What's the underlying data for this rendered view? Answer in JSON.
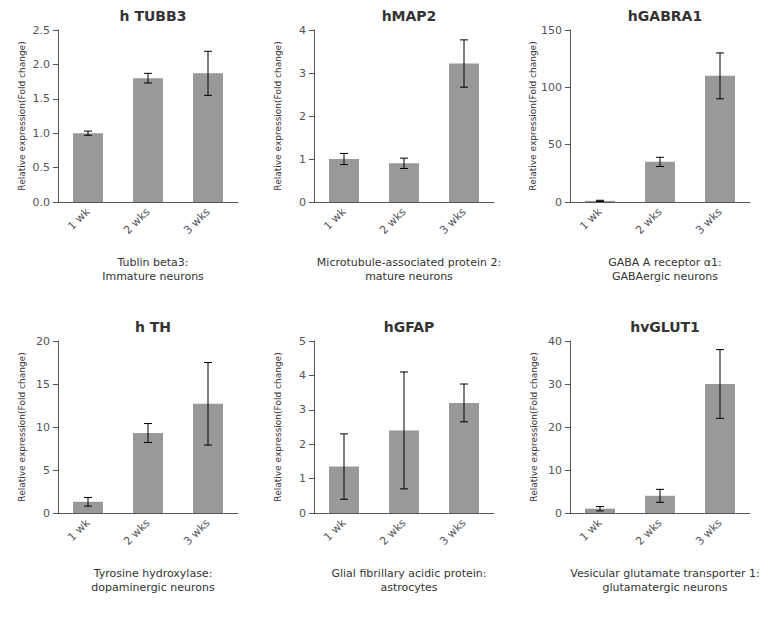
{
  "chart_data": [
    {
      "type": "bar",
      "title": "h TUBB3",
      "subtitle": "Tublin beta3:\nImmature neurons",
      "categories": [
        "1 wk",
        "2 wks",
        "3 wks"
      ],
      "values": [
        1.0,
        1.8,
        1.87
      ],
      "errors": [
        0.03,
        0.07,
        0.32
      ],
      "color": "#999999",
      "ylabel": "Relative expression(Fold change)",
      "ylim": [
        0,
        2.5
      ],
      "yticks": [
        {
          "value": 0,
          "label": "0.0"
        },
        0.5,
        {
          "value": 1,
          "label": "1.0"
        },
        1.5,
        {
          "value": 2,
          "label": "2.0"
        },
        2.5
      ],
      "grid": false
    },
    {
      "type": "bar",
      "title": "hMAP2",
      "subtitle": "Microtubule-associated protein 2:\nmature neurons",
      "categories": [
        "1 wk",
        "2 wks",
        "3 wks"
      ],
      "values": [
        1.0,
        0.9,
        3.22
      ],
      "errors": [
        0.13,
        0.12,
        0.55
      ],
      "color": "#999999",
      "ylabel": "Relative expression(Fold change)",
      "ylim": [
        0,
        4
      ],
      "yticks": [
        0,
        1,
        2,
        3,
        4
      ],
      "grid": false
    },
    {
      "type": "bar",
      "title": "hGABRA1",
      "subtitle": "GABA A receptor α1:\nGABAergic neurons",
      "categories": [
        "1 wk",
        "2 wks",
        "3 wks"
      ],
      "values": [
        1.0,
        35.0,
        110.0
      ],
      "errors": [
        0.5,
        4.0,
        20.0
      ],
      "color": "#999999",
      "ylabel": "Relative expression(Fold change)",
      "ylim": [
        0,
        150
      ],
      "yticks": [
        0,
        50,
        100,
        150
      ],
      "grid": false
    },
    {
      "type": "bar",
      "title": "h TH",
      "subtitle": "Tyrosine hydroxylase:\ndopaminergic neurons",
      "categories": [
        "1 wk",
        "2 wks",
        "3 wks"
      ],
      "values": [
        1.3,
        9.3,
        12.7
      ],
      "errors": [
        0.5,
        1.1,
        4.8
      ],
      "color": "#999999",
      "ylabel": "Relative expression(Fold change)",
      "ylim": [
        0,
        20
      ],
      "yticks": [
        0,
        5,
        10,
        15,
        20
      ],
      "grid": false
    },
    {
      "type": "bar",
      "title": "hGFAP",
      "subtitle": "Glial fibrillary acidic protein:\nastrocytes",
      "categories": [
        "1 wk",
        "2 wks",
        "3 wks"
      ],
      "values": [
        1.35,
        2.4,
        3.2
      ],
      "errors": [
        0.95,
        1.7,
        0.55
      ],
      "color": "#999999",
      "ylabel": "Relative expression(Fold change)",
      "ylim": [
        0,
        5
      ],
      "yticks": [
        0,
        1,
        2,
        3,
        4,
        5
      ],
      "grid": false
    },
    {
      "type": "bar",
      "title": "hvGLUT1",
      "subtitle": "Vesicular glutamate transporter 1:\nglutamatergic neurons",
      "categories": [
        "1 wk",
        "2 wks",
        "3 wks"
      ],
      "values": [
        1.0,
        4.0,
        30.0
      ],
      "errors": [
        0.5,
        1.5,
        8.0
      ],
      "color": "#999999",
      "ylabel": "Relative expression(Fold change)",
      "ylim": [
        0,
        40
      ],
      "yticks": [
        0,
        10,
        20,
        30,
        40
      ],
      "grid": false
    }
  ]
}
